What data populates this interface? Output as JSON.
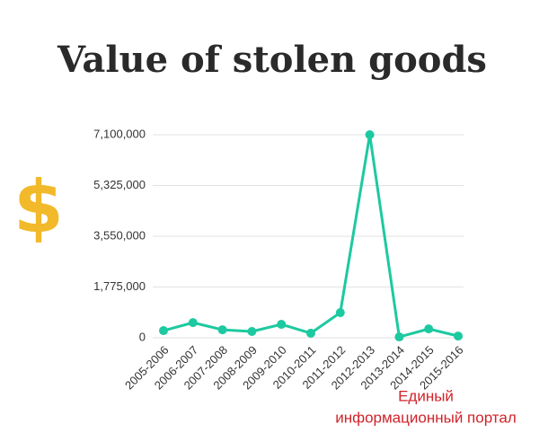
{
  "chart_data": {
    "type": "line",
    "title": "Value of stolen goods",
    "symbol": "$",
    "categories": [
      "2005-2006",
      "2006-2007",
      "2007-2008",
      "2008-2009",
      "2009-2010",
      "2010-2011",
      "2011-2012",
      "2012-2013",
      "2013-2014",
      "2014-2015",
      "2015-2016"
    ],
    "values": [
      250000,
      530000,
      280000,
      220000,
      470000,
      160000,
      880000,
      7100000,
      30000,
      310000,
      60000
    ],
    "color": "#1dc9a0",
    "ylim": [
      0,
      7100000
    ],
    "yticks": [
      0,
      {
        "value": 1775000,
        "label": "1,775,000"
      },
      {
        "value": 3550000,
        "label": "3,550,000"
      },
      {
        "value": 5325000,
        "label": "5,325,000"
      },
      {
        "value": 7100000,
        "label": "7,100,000"
      }
    ],
    "grid": true,
    "watermark": [
      "Единый",
      "информационный портал"
    ]
  }
}
